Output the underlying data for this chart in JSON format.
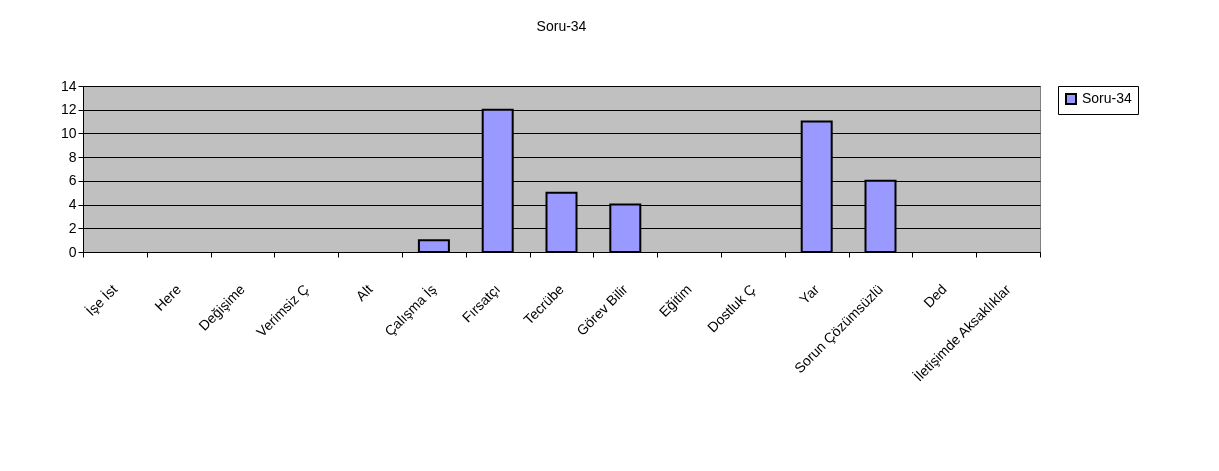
{
  "chart_data": {
    "type": "bar",
    "title": "Soru-34",
    "categories": [
      "İşe İst",
      "Here",
      "Değişime",
      "Verimsiz Ç",
      "Alt",
      "Çalışma İş",
      "Fırsatçı",
      "Tecrübe",
      "Görev Bilir",
      "Eğitim",
      "Dostluk Ç",
      "Yar",
      "Sorun Çözümsüzlü",
      "Ded",
      "İletişimde Aksaklıklar"
    ],
    "series": [
      {
        "name": "Soru-34",
        "color": "#9999ff",
        "values": [
          0,
          0,
          0,
          0,
          0,
          1,
          12,
          5,
          4,
          0,
          0,
          11,
          6,
          0,
          0
        ]
      }
    ],
    "ylim": [
      0,
      14
    ],
    "yticks": [
      0,
      2,
      4,
      6,
      8,
      10,
      12,
      14
    ],
    "grid": "y",
    "legend": "right"
  }
}
